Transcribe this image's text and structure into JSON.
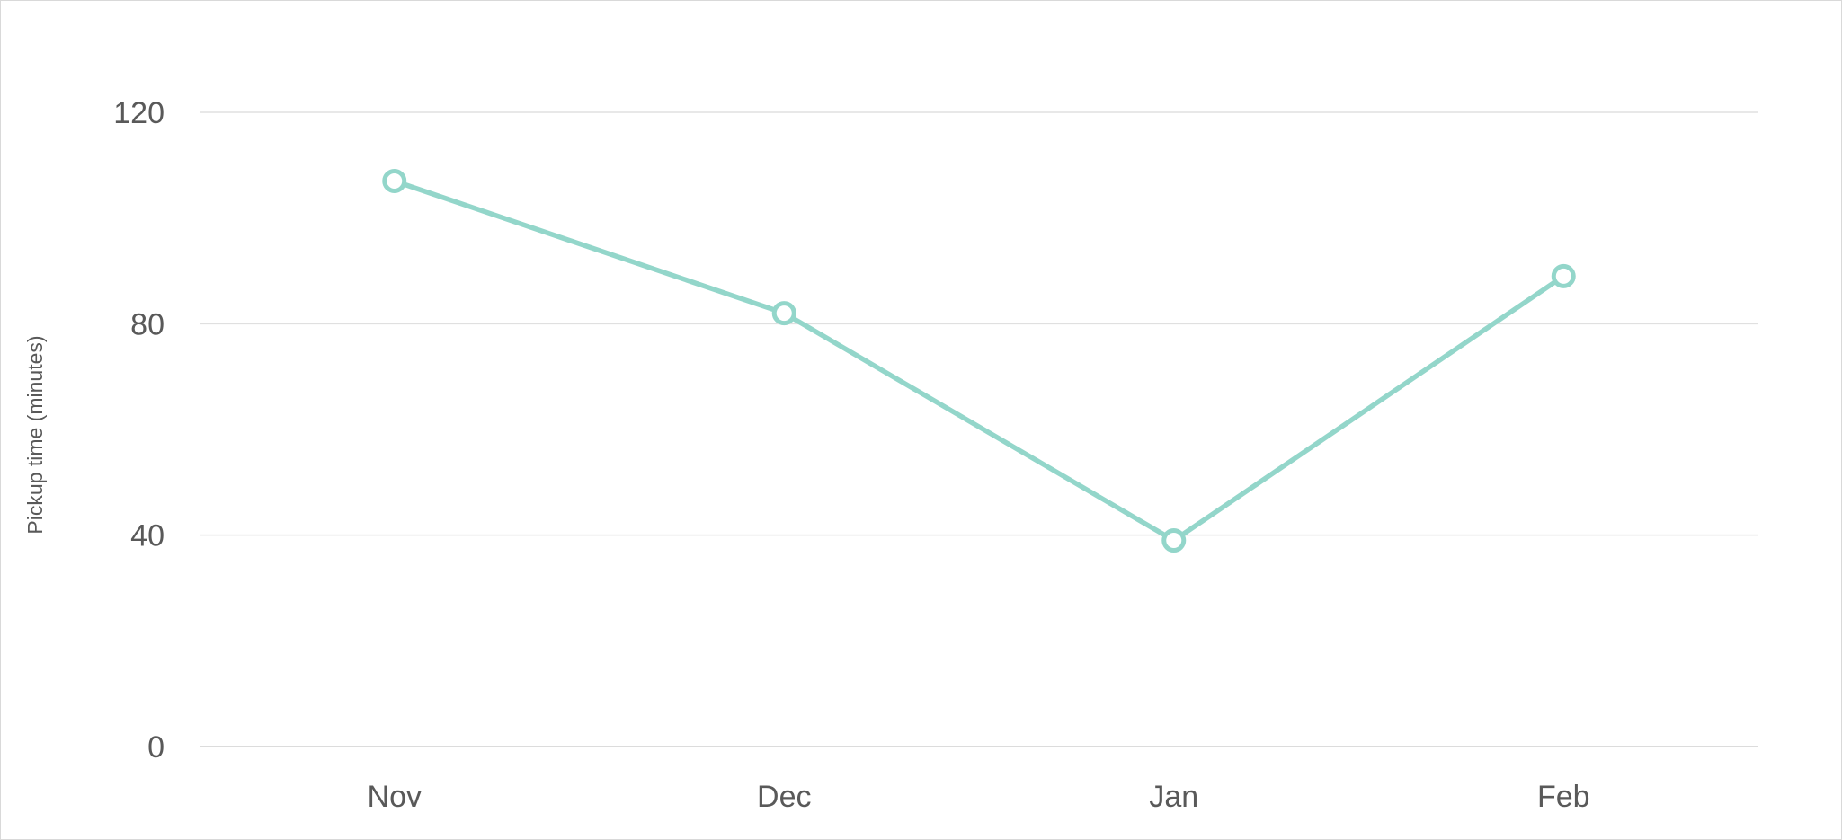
{
  "chart_data": {
    "type": "line",
    "categories": [
      "Nov",
      "Dec",
      "Jan",
      "Feb"
    ],
    "series": [
      {
        "values": [
          107,
          82,
          39,
          89
        ],
        "color": "#93d6ca"
      }
    ],
    "title": "",
    "xlabel": "",
    "ylabel": "Pickup time (minutes)",
    "ylim": [
      0,
      120
    ],
    "yticks": [
      0,
      40,
      80,
      120
    ],
    "grid": true,
    "legend": "none",
    "markers": "hollow-circle"
  }
}
